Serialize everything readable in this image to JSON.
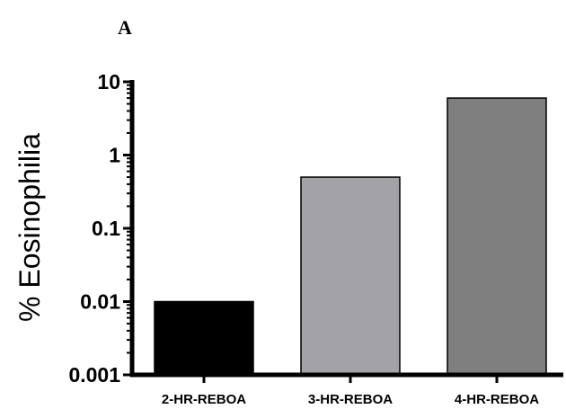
{
  "panel_label": "A",
  "chart_data": {
    "type": "bar",
    "title": "",
    "xlabel": "",
    "ylabel": "% Eosinophilia",
    "yscale": "log",
    "ylim": [
      0.001,
      10
    ],
    "yticks": [
      {
        "value": 0.001,
        "label": "0.001"
      },
      {
        "value": 0.01,
        "label": "0.01"
      },
      {
        "value": 0.1,
        "label": "0.1"
      },
      {
        "value": 1,
        "label": "1"
      },
      {
        "value": 10,
        "label": "10"
      }
    ],
    "categories": [
      "2-HR-REBOA",
      "3-HR-REBOA",
      "4-HR-REBOA"
    ],
    "values": [
      0.01,
      0.5,
      6
    ],
    "colors": [
      "#000000",
      "#a3a3a7",
      "#7f7f7f"
    ],
    "grid": false,
    "legend": false
  }
}
